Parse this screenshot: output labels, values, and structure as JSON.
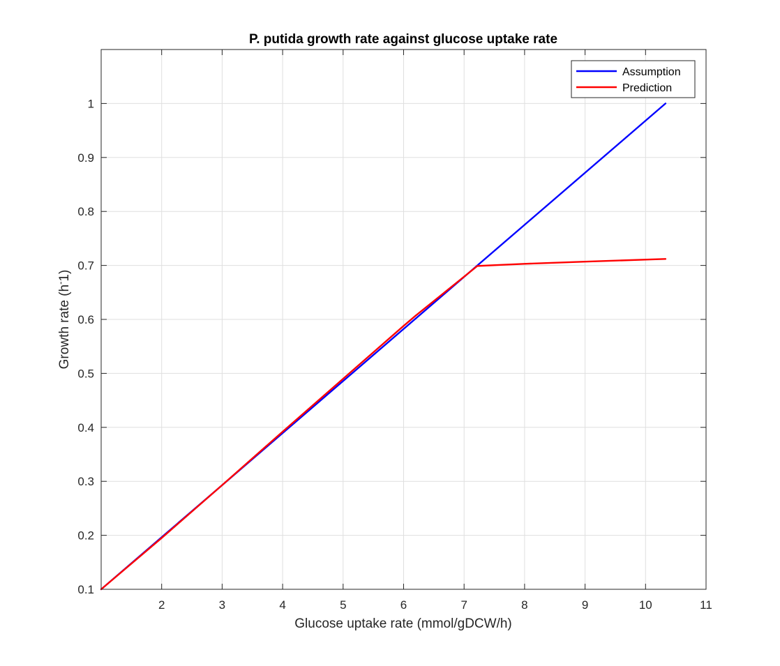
{
  "chart_data": {
    "type": "line",
    "title": "P. putida growth rate against glucose uptake rate",
    "xlabel": "Glucose uptake rate (mmol/gDCW/h)",
    "ylabel_main": "Growth rate (h",
    "ylabel_sup": "-",
    "ylabel_end": "1)",
    "xlim": [
      1,
      11
    ],
    "ylim": [
      0.1,
      1.1
    ],
    "xticks": [
      2,
      3,
      4,
      5,
      6,
      7,
      8,
      9,
      10,
      11
    ],
    "xtick_labels": [
      "2",
      "3",
      "4",
      "5",
      "6",
      "7",
      "8",
      "9",
      "10",
      "11"
    ],
    "yticks": [
      0.1,
      0.2,
      0.3,
      0.4,
      0.5,
      0.6,
      0.7,
      0.8,
      0.9,
      1
    ],
    "ytick_labels": [
      "0.1",
      "0.2",
      "0.3",
      "0.4",
      "0.5",
      "0.6",
      "0.7",
      "0.8",
      "0.9",
      "1"
    ],
    "grid": true,
    "legend_position": "top-right",
    "series": [
      {
        "name": "Assumption",
        "color": "#0000ff",
        "x": [
          1.0,
          10.33
        ],
        "y": [
          0.1,
          1.0
        ]
      },
      {
        "name": "Prediction",
        "color": "#ff0000",
        "x": [
          1.0,
          2.0,
          3.0,
          4.0,
          5.0,
          6.0,
          6.2,
          7.22,
          8.0,
          9.0,
          10.33
        ],
        "y": [
          0.1,
          0.195,
          0.293,
          0.392,
          0.49,
          0.588,
          0.607,
          0.699,
          0.703,
          0.707,
          0.712
        ]
      }
    ]
  }
}
